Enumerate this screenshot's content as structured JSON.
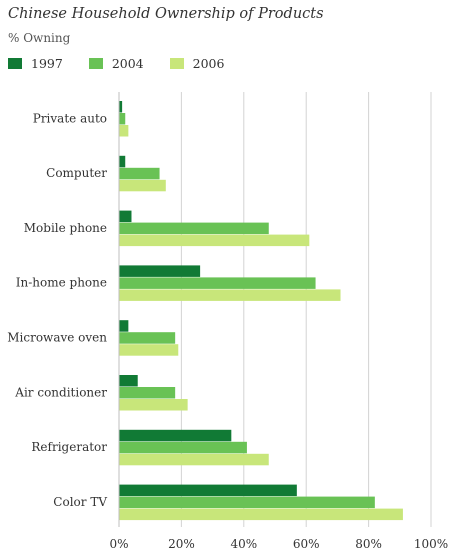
{
  "title": "Chinese Household Ownership of Products",
  "subtitle": "% Owning",
  "colors": {
    "1997": "#117a35",
    "2004": "#69c255",
    "2006": "#c8e67a",
    "grid": "#d3d3d3"
  },
  "chart_data": {
    "type": "bar",
    "orientation": "horizontal",
    "title": "Chinese Household Ownership of Products",
    "subtitle": "% Owning",
    "categories": [
      "Private auto",
      "Computer",
      "Mobile phone",
      "In-home phone",
      "Microwave oven",
      "Air conditioner",
      "Refrigerator",
      "Color TV"
    ],
    "series": [
      {
        "name": "1997",
        "values": [
          1,
          2,
          4,
          26,
          3,
          6,
          36,
          57
        ]
      },
      {
        "name": "2004",
        "values": [
          2,
          13,
          48,
          63,
          18,
          18,
          41,
          82
        ]
      },
      {
        "name": "2006",
        "values": [
          3,
          15,
          61,
          71,
          19,
          22,
          48,
          91
        ]
      }
    ],
    "xlim": [
      0,
      100
    ],
    "ticks": [
      "0%",
      "20%",
      "40%",
      "60%",
      "80%",
      "100%"
    ],
    "legend_position": "top-left",
    "grid": true
  }
}
